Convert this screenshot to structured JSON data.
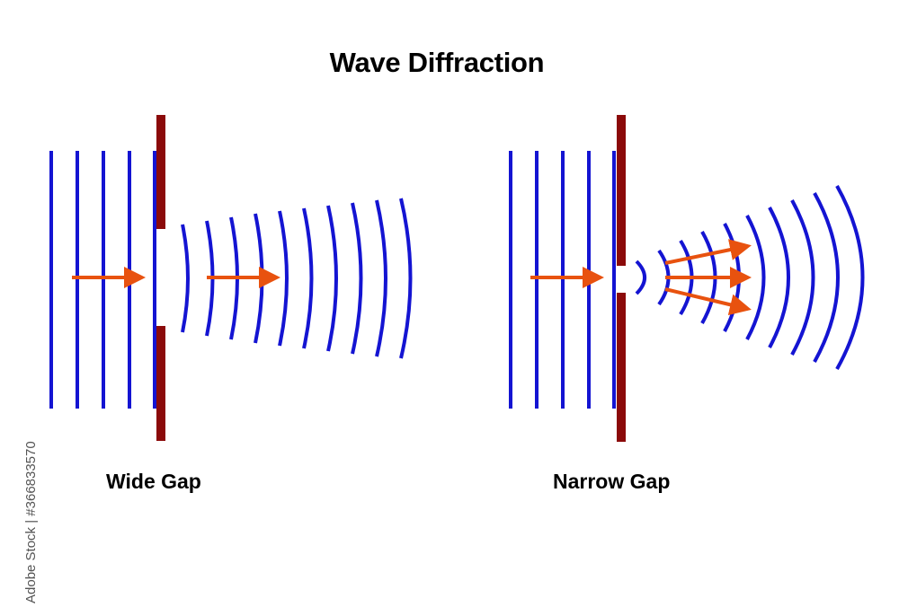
{
  "title": "Wave Diffraction",
  "panels": [
    {
      "id": "wide",
      "caption": "Wide Gap"
    },
    {
      "id": "narrow",
      "caption": "Narrow Gap"
    }
  ],
  "watermark": {
    "stock_id": "Adobe Stock | #366833570"
  },
  "colors": {
    "wavefront": "#1414d2",
    "barrier": "#8b0a0a",
    "arrow": "#e8520f",
    "text": "#000000"
  }
}
